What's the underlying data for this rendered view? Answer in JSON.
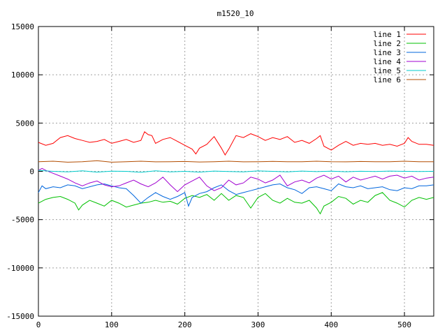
{
  "chart_data": {
    "type": "line",
    "title": "m1520_10",
    "xlabel": "",
    "ylabel": "",
    "xlim": [
      0,
      540
    ],
    "ylim": [
      -15000,
      15000
    ],
    "xticks": [
      0,
      100,
      200,
      300,
      400,
      500
    ],
    "yticks": [
      -15000,
      -10000,
      -5000,
      0,
      5000,
      10000,
      15000
    ],
    "grid": true,
    "legend_position": "top-right",
    "series": [
      {
        "name": "line 1",
        "color": "#ff0000",
        "x": [
          0,
          10,
          20,
          30,
          40,
          50,
          60,
          70,
          80,
          90,
          100,
          110,
          120,
          130,
          140,
          145,
          150,
          155,
          160,
          170,
          180,
          190,
          200,
          210,
          215,
          220,
          230,
          240,
          250,
          255,
          260,
          270,
          280,
          290,
          300,
          310,
          320,
          330,
          340,
          350,
          360,
          370,
          380,
          385,
          390,
          400,
          410,
          420,
          430,
          440,
          450,
          460,
          470,
          480,
          490,
          500,
          505,
          510,
          520,
          530,
          540
        ],
        "values": [
          3000,
          2700,
          2900,
          3500,
          3700,
          3400,
          3200,
          3000,
          3100,
          3300,
          2900,
          3100,
          3300,
          3000,
          3200,
          4100,
          3800,
          3700,
          2900,
          3300,
          3500,
          3100,
          2700,
          2300,
          1800,
          2400,
          2800,
          3600,
          2400,
          1700,
          2300,
          3700,
          3500,
          3900,
          3600,
          3200,
          3500,
          3300,
          3600,
          3000,
          3200,
          2900,
          3400,
          3700,
          2600,
          2200,
          2700,
          3100,
          2700,
          2900,
          2800,
          2900,
          2700,
          2800,
          2600,
          2900,
          3500,
          3100,
          2800,
          2800,
          2700
        ]
      },
      {
        "name": "line 2",
        "color": "#00c000",
        "x": [
          0,
          10,
          20,
          30,
          40,
          50,
          55,
          60,
          70,
          80,
          90,
          100,
          110,
          120,
          130,
          140,
          150,
          160,
          170,
          180,
          190,
          200,
          210,
          220,
          230,
          240,
          250,
          260,
          270,
          280,
          290,
          300,
          310,
          320,
          330,
          340,
          350,
          360,
          370,
          380,
          385,
          390,
          400,
          410,
          420,
          430,
          440,
          450,
          460,
          470,
          480,
          490,
          500,
          510,
          520,
          530,
          540
        ],
        "values": [
          -3300,
          -2900,
          -2700,
          -2600,
          -2900,
          -3300,
          -4000,
          -3500,
          -3000,
          -3300,
          -3600,
          -3000,
          -3300,
          -3700,
          -3500,
          -3300,
          -3200,
          -3000,
          -3200,
          -3100,
          -3400,
          -2800,
          -2500,
          -2700,
          -2400,
          -3000,
          -2300,
          -3000,
          -2500,
          -2700,
          -3800,
          -2700,
          -2300,
          -3000,
          -3300,
          -2800,
          -3200,
          -3300,
          -3000,
          -3800,
          -4400,
          -3600,
          -3200,
          -2600,
          -2800,
          -3400,
          -3000,
          -3200,
          -2500,
          -2200,
          -3000,
          -3300,
          -3700,
          -3000,
          -2700,
          -2900,
          -2700
        ]
      },
      {
        "name": "line 3",
        "color": "#0066dd",
        "x": [
          0,
          5,
          10,
          20,
          30,
          40,
          50,
          60,
          70,
          80,
          90,
          100,
          110,
          120,
          130,
          140,
          150,
          160,
          170,
          180,
          190,
          200,
          205,
          210,
          220,
          230,
          240,
          250,
          260,
          270,
          280,
          290,
          300,
          310,
          320,
          330,
          340,
          350,
          360,
          370,
          380,
          390,
          400,
          410,
          420,
          430,
          440,
          450,
          460,
          470,
          480,
          490,
          500,
          510,
          520,
          530,
          540
        ],
        "values": [
          -2200,
          -1500,
          -1800,
          -1600,
          -1700,
          -1400,
          -1500,
          -1800,
          -1600,
          -1400,
          -1300,
          -1500,
          -1700,
          -1800,
          -2500,
          -3300,
          -2700,
          -2200,
          -2600,
          -2900,
          -2600,
          -2200,
          -3600,
          -2700,
          -2300,
          -2100,
          -1700,
          -1400,
          -2000,
          -2400,
          -2200,
          -2000,
          -1800,
          -1600,
          -1400,
          -1300,
          -1700,
          -1900,
          -2300,
          -1700,
          -1600,
          -1800,
          -2000,
          -1300,
          -1600,
          -1700,
          -1500,
          -1800,
          -1700,
          -1600,
          -1900,
          -2000,
          -1700,
          -1800,
          -1500,
          -1500,
          -1400
        ]
      },
      {
        "name": "line 4",
        "color": "#a000d0",
        "x": [
          0,
          5,
          10,
          20,
          30,
          40,
          50,
          60,
          70,
          80,
          90,
          100,
          110,
          120,
          130,
          140,
          150,
          160,
          170,
          180,
          190,
          200,
          210,
          220,
          230,
          240,
          250,
          260,
          270,
          280,
          290,
          300,
          310,
          320,
          330,
          340,
          350,
          360,
          370,
          380,
          390,
          400,
          410,
          420,
          430,
          440,
          450,
          460,
          470,
          480,
          490,
          500,
          510,
          520,
          530,
          540
        ],
        "values": [
          100,
          300,
          100,
          -200,
          -500,
          -800,
          -1200,
          -1500,
          -1200,
          -1000,
          -1400,
          -1600,
          -1500,
          -1200,
          -900,
          -1300,
          -1600,
          -1200,
          -600,
          -1400,
          -2100,
          -1400,
          -1000,
          -600,
          -1500,
          -2000,
          -1700,
          -900,
          -1400,
          -1200,
          -600,
          -800,
          -1200,
          -900,
          -400,
          -1500,
          -1100,
          -900,
          -1200,
          -700,
          -400,
          -800,
          -500,
          -1100,
          -600,
          -900,
          -700,
          -500,
          -800,
          -500,
          -400,
          -700,
          -500,
          -900,
          -700,
          -600
        ]
      },
      {
        "name": "line 5",
        "color": "#00cccc",
        "x": [
          0,
          20,
          40,
          60,
          80,
          100,
          120,
          140,
          160,
          180,
          200,
          220,
          240,
          260,
          280,
          300,
          320,
          340,
          360,
          380,
          400,
          420,
          440,
          460,
          480,
          500,
          520,
          540
        ],
        "values": [
          100,
          0,
          -50,
          50,
          -80,
          20,
          0,
          -100,
          50,
          -50,
          0,
          -80,
          30,
          -20,
          -60,
          40,
          0,
          -50,
          30,
          -30,
          20,
          -40,
          10,
          -20,
          30,
          0,
          -20,
          0
        ]
      },
      {
        "name": "line 6",
        "color": "#b34d00",
        "x": [
          0,
          20,
          40,
          60,
          80,
          100,
          120,
          140,
          160,
          180,
          200,
          220,
          240,
          260,
          280,
          300,
          320,
          340,
          360,
          380,
          400,
          420,
          440,
          460,
          480,
          500,
          520,
          540
        ],
        "values": [
          1000,
          1050,
          950,
          1000,
          1100,
          950,
          1000,
          1050,
          980,
          1000,
          1020,
          970,
          1000,
          1050,
          980,
          1000,
          1030,
          990,
          1000,
          1050,
          1000,
          980,
          1020,
          1000,
          990,
          1050,
          1000,
          1000
        ]
      }
    ]
  }
}
